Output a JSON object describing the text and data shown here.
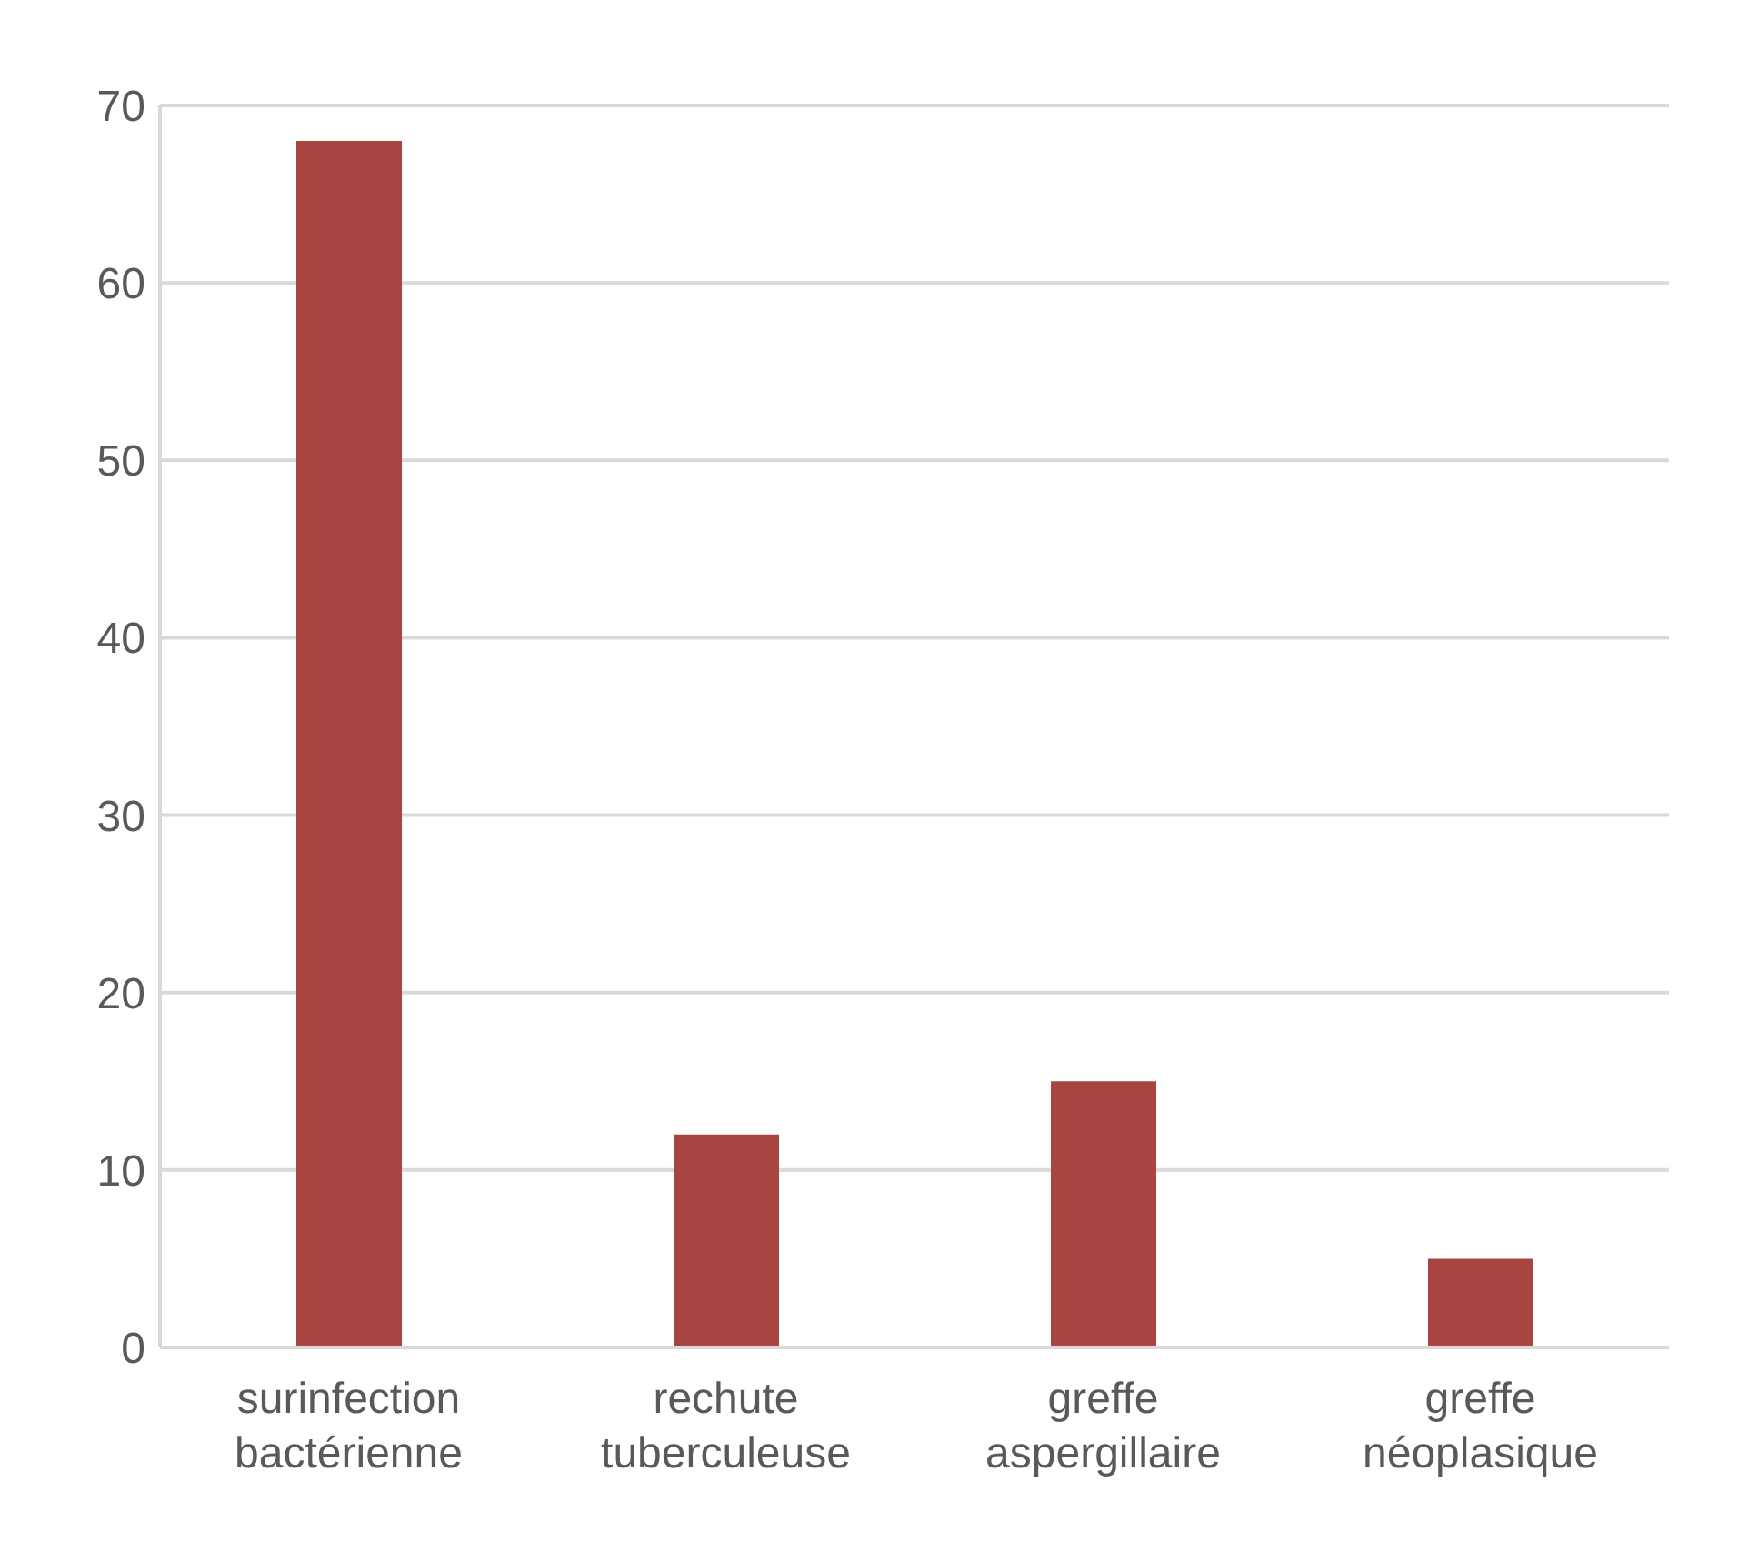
{
  "chart_data": {
    "type": "bar",
    "categories": [
      "surinfection bactérienne",
      "rechute tuberculeuse",
      "greffe aspergillaire",
      "greffe néoplasique"
    ],
    "values": [
      68,
      12,
      15,
      5
    ],
    "color": "#a84541",
    "ylim": [
      0,
      70
    ],
    "yticks": [
      0,
      10,
      20,
      30,
      40,
      50,
      60,
      70
    ],
    "grid": "y"
  }
}
